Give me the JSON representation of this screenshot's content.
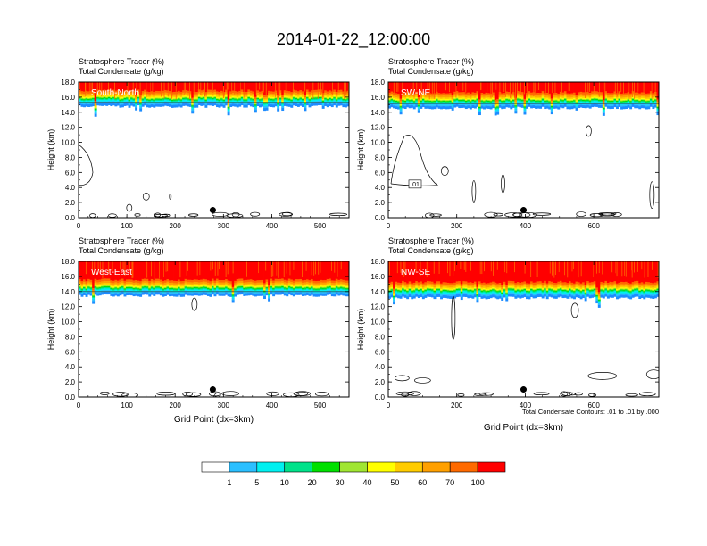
{
  "title": "2014-01-22_12:00:00",
  "contour_note": "Total Condensate Contours: .01 to .01 by .000",
  "colors": {
    "scale": [
      "#ffffff",
      "#1e8cff",
      "#2bbfff",
      "#00f0f0",
      "#00e28a",
      "#00e000",
      "#a0e632",
      "#ffff00",
      "#ffcc00",
      "#ffa000",
      "#ff6a00",
      "#ff0000"
    ],
    "contour": "#000000",
    "marker": "#000000"
  },
  "colorbar": {
    "labels": [
      "1",
      "5",
      "10",
      "20",
      "30",
      "40",
      "50",
      "60",
      "70",
      "100"
    ]
  },
  "chart_data": [
    {
      "type": "heatmap",
      "name": "South-North",
      "header_line1": "Stratosphere Tracer   (%)",
      "header_line2": "Total Condensate   (g/kg)",
      "ylabel": "Height (km)",
      "xlabel": "",
      "ylim": [
        0,
        18
      ],
      "xlim": [
        0,
        560
      ],
      "yticks": [
        "0.0",
        "2.0",
        "4.0",
        "6.0",
        "8.0",
        "10.0",
        "12.0",
        "14.0",
        "16.0",
        "18.0"
      ],
      "xticks": [
        0,
        100,
        200,
        300,
        400,
        500
      ],
      "tracer_base_km": 14.8,
      "marker_x": 278,
      "contour_labels": []
    },
    {
      "type": "heatmap",
      "name": "SW-NE",
      "header_line1": "Stratosphere Tracer   (%)",
      "header_line2": "Total Condensate   (g/kg)",
      "ylabel": "Height (km)",
      "xlabel": "",
      "ylim": [
        0,
        18
      ],
      "xlim": [
        0,
        790
      ],
      "yticks": [
        "0.0",
        "2.0",
        "4.0",
        "6.0",
        "8.0",
        "10.0",
        "12.0",
        "14.0",
        "16.0",
        "18.0"
      ],
      "xticks": [
        0,
        200,
        400,
        600
      ],
      "tracer_base_km": 14.6,
      "marker_x": 395,
      "contour_labels": [
        ".01"
      ]
    },
    {
      "type": "heatmap",
      "name": "West-East",
      "header_line1": "Stratosphere Tracer   (%)",
      "header_line2": "Total Condensate   (g/kg)",
      "ylabel": "Height (km)",
      "xlabel": "Grid Point (dx=3km)",
      "ylim": [
        0,
        18
      ],
      "xlim": [
        0,
        560
      ],
      "yticks": [
        "0.0",
        "2.0",
        "4.0",
        "6.0",
        "8.0",
        "10.0",
        "12.0",
        "14.0",
        "16.0",
        "18.0"
      ],
      "xticks": [
        0,
        100,
        200,
        300,
        400,
        500
      ],
      "tracer_base_km": 13.5,
      "marker_x": 278,
      "contour_labels": []
    },
    {
      "type": "heatmap",
      "name": "NW-SE",
      "header_line1": "Stratosphere Tracer   (%)",
      "header_line2": "Total Condensate   (g/kg)",
      "ylabel": "Height (km)",
      "xlabel": "Grid Point (dx=3km)",
      "ylim": [
        0,
        18
      ],
      "xlim": [
        0,
        790
      ],
      "yticks": [
        "0.0",
        "2.0",
        "4.0",
        "6.0",
        "8.0",
        "10.0",
        "12.0",
        "14.0",
        "16.0",
        "18.0"
      ],
      "xticks": [
        0,
        200,
        400,
        600
      ],
      "tracer_base_km": 13.2,
      "marker_x": 395,
      "contour_labels": []
    }
  ]
}
